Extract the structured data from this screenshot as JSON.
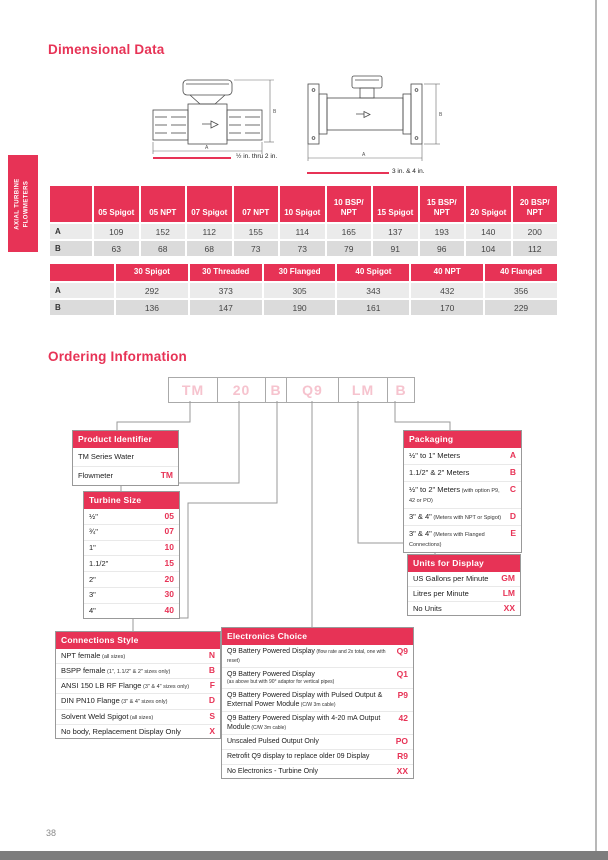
{
  "page": {
    "number": "38",
    "sidebar_line1": "AXIAL TURBINE",
    "sidebar_line2": "FLOWMETERS"
  },
  "colors": {
    "accent": "#E73356",
    "code_text_pink": "#F6C3CE"
  },
  "dimensional": {
    "title": "Dimensional Data",
    "dim_a": "A",
    "dim_b": "B",
    "small_meter_label": "½ in. thru 2 in.",
    "large_meter_label": "3 in. & 4 in.",
    "table1": {
      "columns": [
        "05 Spigot",
        "05 NPT",
        "07 Spigot",
        "07 NPT",
        "10 Spigot",
        "10 BSP/NPT",
        "15 Spigot",
        "15 BSP/NPT",
        "20 Spigot",
        "20 BSP/NPT"
      ],
      "rows": [
        {
          "label": "A",
          "values": [
            109,
            152,
            112,
            155,
            114,
            165,
            137,
            193,
            140,
            200
          ]
        },
        {
          "label": "B",
          "values": [
            63,
            68,
            68,
            73,
            73,
            79,
            91,
            96,
            104,
            112
          ]
        }
      ]
    },
    "table2": {
      "columns": [
        "30 Spigot",
        "30 Threaded",
        "30 Flanged",
        "40 Spigot",
        "40 NPT",
        "40 Flanged"
      ],
      "rows": [
        {
          "label": "A",
          "values": [
            292,
            373,
            305,
            343,
            432,
            356
          ]
        },
        {
          "label": "B",
          "values": [
            136,
            147,
            190,
            161,
            170,
            229
          ]
        }
      ]
    }
  },
  "ordering": {
    "title": "Ordering Information",
    "code_boxes": [
      "TM",
      "20",
      "B",
      "Q9",
      "LM",
      "B"
    ],
    "product": {
      "title": "Product Identifier",
      "items": [
        {
          "label": "TM Series Water",
          "code": ""
        },
        {
          "label": "Flowmeter",
          "code": "TM"
        }
      ]
    },
    "turbine": {
      "title": "Turbine Size",
      "items": [
        {
          "label": "½\"",
          "code": "05"
        },
        {
          "label": "¾\"",
          "code": "07"
        },
        {
          "label": "1\"",
          "code": "10"
        },
        {
          "label": "1.1/2\"",
          "code": "15"
        },
        {
          "label": "2\"",
          "code": "20"
        },
        {
          "label": "3\"",
          "code": "30"
        },
        {
          "label": "4\"",
          "code": "40"
        }
      ]
    },
    "connections": {
      "title": "Connections Style",
      "items": [
        {
          "label": "NPT female",
          "note": "(all sizes)",
          "code": "N"
        },
        {
          "label": "BSPP female",
          "note": "(1\", 1.1/2\" & 2\" sizes only)",
          "code": "B"
        },
        {
          "label": "ANSI 150 LB RF Flange",
          "note": "(3\" & 4\" sizes only)",
          "code": "F"
        },
        {
          "label": "DIN PN10 Flange",
          "note": "(3\" & 4\" sizes only)",
          "code": "D"
        },
        {
          "label": "Solvent Weld Spigot",
          "note": "(all sizes)",
          "code": "S"
        },
        {
          "label": "No body, Replacement Display Only",
          "code": "X"
        }
      ]
    },
    "electronics": {
      "title": "Electronics Choice",
      "items": [
        {
          "label": "Q9 Battery Powered Display",
          "note": "(flow rate and 2x total, one with reset)",
          "code": "Q9"
        },
        {
          "label": "Q9 Battery Powered Display",
          "note_below": "(as above but with 90° adaptor for vertical pipes)",
          "code": "Q1"
        },
        {
          "label": "Q9 Battery Powered Display with Pulsed Output & External Power Module",
          "note": "(C/W 3m cable)",
          "code": "P9"
        },
        {
          "label": "Q9 Battery Powered Display with 4-20 mA Output Module",
          "note": "(C/W 3m cable)",
          "code": "42"
        },
        {
          "label": "Unscaled Pulsed Output Only",
          "code": "PO"
        },
        {
          "label": "Retrofit Q9 display to replace older 09 Display",
          "code": "R9"
        },
        {
          "label": "No Electronics - Turbine Only",
          "code": "XX"
        }
      ]
    },
    "units": {
      "title": "Units for Display",
      "items": [
        {
          "label": "US Gallons per Minute",
          "code": "GM"
        },
        {
          "label": "Litres per Minute",
          "code": "LM"
        },
        {
          "label": "No Units",
          "code": "XX"
        }
      ]
    },
    "packaging": {
      "title": "Packaging",
      "items": [
        {
          "label": "½\" to 1\" Meters",
          "code": "A"
        },
        {
          "label": "1.1/2\" & 2\" Meters",
          "code": "B"
        },
        {
          "label": "½\" to 2\" Meters",
          "note": "(with option P9, 42 or PO)",
          "code": "C"
        },
        {
          "label": "3\" & 4\"",
          "note": "(Meters with NPT or Spigot)",
          "code": "D"
        },
        {
          "label": "3\" & 4\"",
          "note": "(Meters with Flanged Connections)",
          "code": "E"
        }
      ]
    }
  }
}
